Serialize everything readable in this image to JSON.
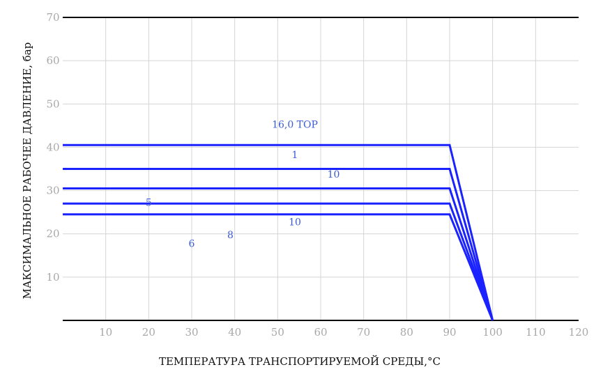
{
  "chart_data": {
    "type": "line",
    "title": "",
    "xlabel": "ТЕМПЕРАТУРА ТРАНСПОРТИРУЕМОЙ СРЕДЫ,°С",
    "ylabel": "МАКСИМАЛЬНОЕ РАБОЧЕЕ ДАВЛЕНИЕ, бар",
    "xlim": [
      0,
      120
    ],
    "ylim": [
      0,
      70
    ],
    "x_ticks": [
      10,
      20,
      30,
      40,
      50,
      60,
      70,
      80,
      90,
      100,
      110,
      120
    ],
    "y_ticks": [
      10,
      20,
      30,
      40,
      50,
      60,
      70
    ],
    "grid": true,
    "legend": "none",
    "colors": {
      "series": "#1a22ff",
      "grid": "#d4d4d4",
      "axis": "#000000",
      "ticks": "#a8a8a8"
    },
    "series": [
      {
        "x": [
          0,
          90,
          100
        ],
        "y": [
          40.5,
          40.5,
          0
        ]
      },
      {
        "x": [
          0,
          90,
          100
        ],
        "y": [
          35,
          35,
          0
        ]
      },
      {
        "x": [
          0,
          90,
          100
        ],
        "y": [
          30.5,
          30.5,
          0
        ]
      },
      {
        "x": [
          0,
          90,
          100
        ],
        "y": [
          27,
          27,
          0
        ]
      },
      {
        "x": [
          0,
          90,
          100
        ],
        "y": [
          24.5,
          24.5,
          0
        ]
      }
    ],
    "series_labels": [
      {
        "text": "16,0 TOP",
        "x": 54,
        "y": 44.5
      },
      {
        "text": "1",
        "x": 54,
        "y": 37.5
      },
      {
        "text": "10",
        "x": 63,
        "y": 33
      },
      {
        "text": "5",
        "x": 20,
        "y": 26.5
      },
      {
        "text": "6",
        "x": 30,
        "y": 17
      },
      {
        "text": "8",
        "x": 39,
        "y": 19
      },
      {
        "text": "10",
        "x": 54,
        "y": 22
      }
    ]
  }
}
